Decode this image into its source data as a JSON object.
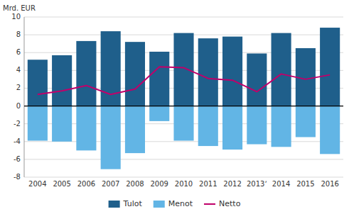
{
  "chart_data": {
    "type": "bar",
    "ylabel": "Mrd. EUR",
    "categories": [
      "2004",
      "2005",
      "2006",
      "2007",
      "2008",
      "2009",
      "2010",
      "2011",
      "2012",
      "2013ʼ",
      "2014",
      "2015",
      "2016"
    ],
    "series": [
      {
        "name": "Tulot",
        "type": "bar",
        "color": "#1F5F8B",
        "values": [
          5.2,
          5.7,
          7.3,
          8.4,
          7.2,
          6.1,
          8.2,
          7.6,
          7.8,
          5.9,
          8.2,
          6.5,
          8.8
        ]
      },
      {
        "name": "Menot",
        "type": "bar",
        "color": "#62B5E5",
        "values": [
          -3.9,
          -4.0,
          -5.0,
          -7.1,
          -5.3,
          -1.7,
          -3.9,
          -4.5,
          -4.9,
          -4.3,
          -4.6,
          -3.5,
          -5.4
        ]
      },
      {
        "name": "Netto",
        "type": "line",
        "color": "#C0006A",
        "values": [
          1.3,
          1.7,
          2.3,
          1.3,
          1.9,
          4.4,
          4.3,
          3.1,
          2.9,
          1.6,
          3.6,
          3.0,
          3.5
        ]
      }
    ],
    "ylim": [
      -8,
      10
    ],
    "yticks": [
      -8,
      -6,
      -4,
      -2,
      0,
      2,
      4,
      6,
      8,
      10
    ],
    "grid": true,
    "legend": "bottom"
  }
}
